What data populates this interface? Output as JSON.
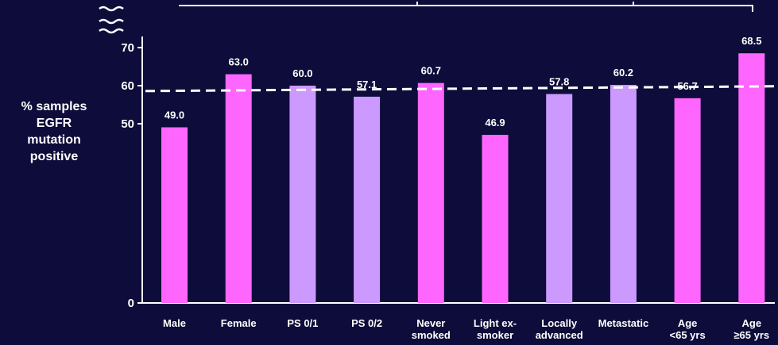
{
  "chart_data": {
    "type": "bar",
    "ylabel_lines": [
      "% samples",
      "EGFR",
      "mutation",
      "positive"
    ],
    "categories": [
      [
        "Male"
      ],
      [
        "Female"
      ],
      [
        "PS 0/1"
      ],
      [
        "PS 0/2"
      ],
      [
        "Never",
        "smoked"
      ],
      [
        "Light ex-",
        "smoker"
      ],
      [
        "Locally",
        "advanced"
      ],
      [
        "Metastatic"
      ],
      [
        "Age",
        "<65 yrs"
      ],
      [
        "Age",
        "≥65 yrs"
      ]
    ],
    "values": [
      49.0,
      63.0,
      60.0,
      57.1,
      60.7,
      46.9,
      57.8,
      60.2,
      56.7,
      68.5
    ],
    "value_labels": [
      "49.0",
      "63.0",
      "60.0",
      "57.1",
      "60.7",
      "46.9",
      "57.8",
      "60.2",
      "56.7",
      "68.5"
    ],
    "bar_colors": [
      "#ff66ff",
      "#ff66ff",
      "#cc99ff",
      "#cc99ff",
      "#ff66ff",
      "#ff66ff",
      "#cc99ff",
      "#cc99ff",
      "#ff66ff",
      "#ff66ff"
    ],
    "yticks": [
      0,
      50,
      60,
      70
    ],
    "reference_line": 59.0,
    "y_axis_break": true,
    "grid": false,
    "legend": "none"
  }
}
